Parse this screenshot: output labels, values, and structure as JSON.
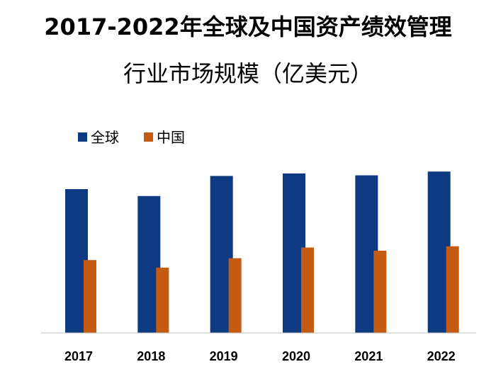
{
  "title_line1": "2017-2022年全球及中国资产绩效管理",
  "title_line2": "行业市场规模（亿美元）",
  "chart_data": {
    "type": "bar",
    "title": "2017-2022年全球及中国资产绩效管理行业市场规模（亿美元）",
    "categories": [
      "2017",
      "2018",
      "2019",
      "2020",
      "2021",
      "2022"
    ],
    "series": [
      {
        "name": "全球",
        "values": [
          229,
          218,
          250,
          254,
          251,
          257
        ]
      },
      {
        "name": "中国",
        "values": [
          116,
          104,
          119,
          136,
          131,
          138
        ]
      }
    ],
    "ylim": [
      0,
      300
    ],
    "grid": false,
    "legend_position": "top-left",
    "colors": {
      "全球": "#0e3a82",
      "中国": "#c55a11"
    }
  }
}
